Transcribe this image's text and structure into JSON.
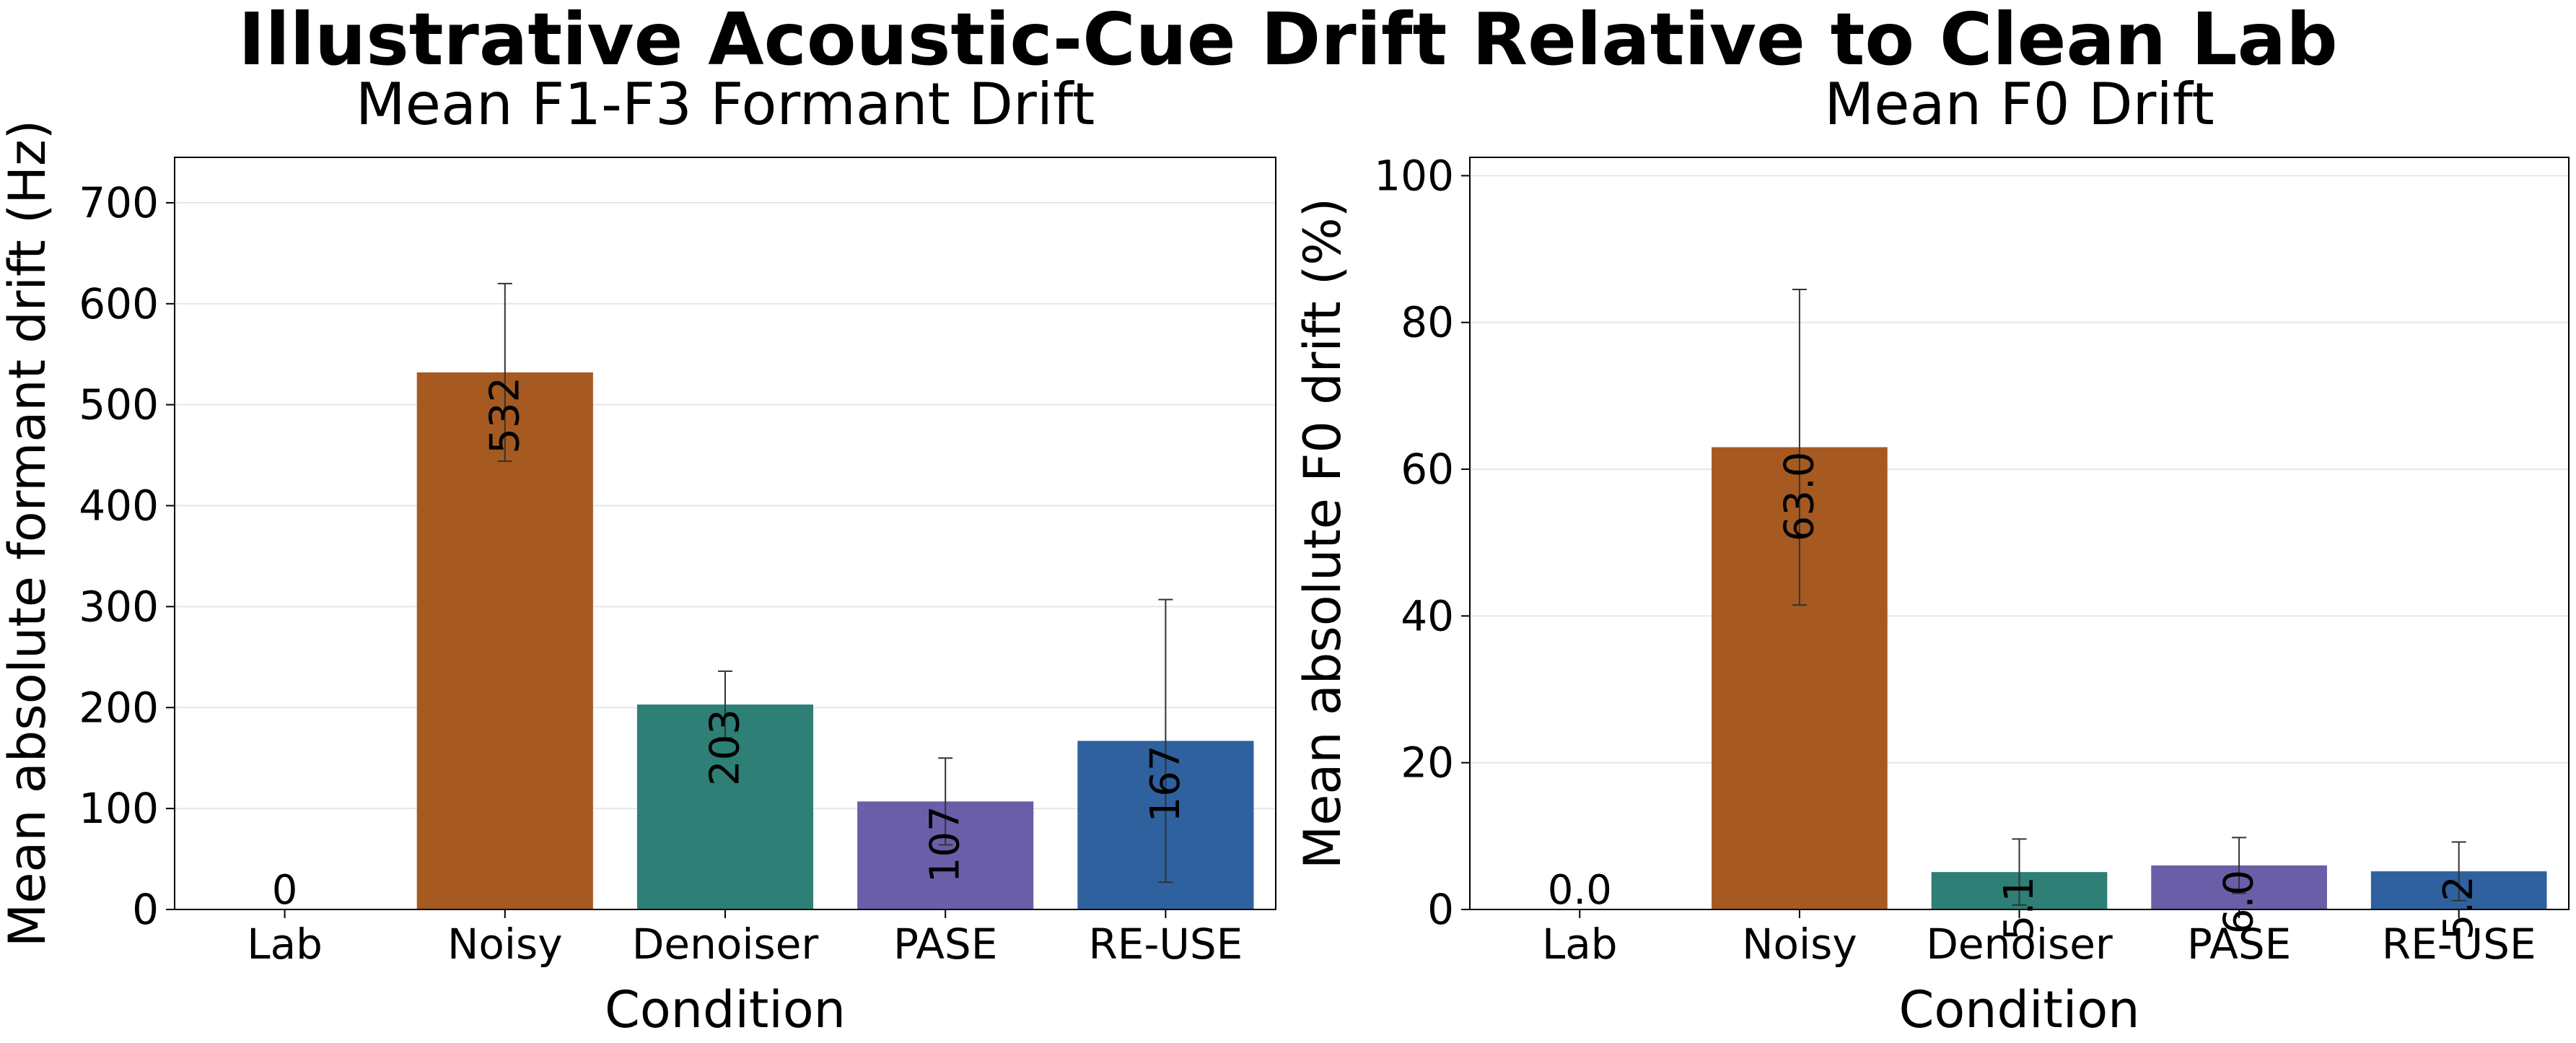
{
  "suptitle": "Illustrative Acoustic-Cue Drift Relative to Clean Lab",
  "colors": {
    "Lab": "#999999",
    "Noisy": "#a65a21",
    "Denoiser": "#2e7f76",
    "PASE": "#6b5ea8",
    "RE-USE": "#2f619f"
  },
  "chart_data": [
    {
      "type": "bar",
      "title": "Mean F1-F3 Formant Drift",
      "xlabel": "Condition",
      "ylabel": "Mean absolute formant drift (Hz)",
      "categories": [
        "Lab",
        "Noisy",
        "Denoiser",
        "PASE",
        "RE-USE"
      ],
      "values": [
        0,
        532,
        203,
        107,
        167
      ],
      "error": [
        0,
        88,
        33,
        43,
        140
      ],
      "value_labels": [
        "0",
        "532",
        "203",
        "107",
        "167"
      ],
      "ylim": [
        0,
        745
      ],
      "yticks": [
        0,
        100,
        200,
        300,
        400,
        500,
        600,
        700
      ],
      "grid": true
    },
    {
      "type": "bar",
      "title": "Mean F0 Drift",
      "xlabel": "Condition",
      "ylabel": "Mean absolute F0 drift (%)",
      "categories": [
        "Lab",
        "Noisy",
        "Denoiser",
        "PASE",
        "RE-USE"
      ],
      "values": [
        0.0,
        63.0,
        5.1,
        6.0,
        5.2
      ],
      "error": [
        0,
        21.5,
        4.5,
        3.8,
        4.0
      ],
      "value_labels": [
        "0.0",
        "63.0",
        "5.1",
        "6.0",
        "5.2"
      ],
      "ylim": [
        0,
        102.5
      ],
      "yticks": [
        0,
        20,
        40,
        60,
        80,
        100
      ],
      "grid": true
    }
  ]
}
